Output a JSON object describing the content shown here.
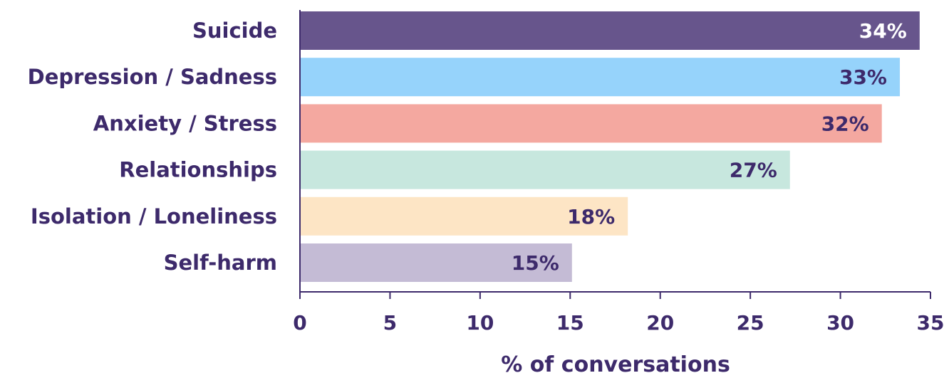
{
  "chart_data": {
    "type": "bar",
    "orientation": "horizontal",
    "categories": [
      "Suicide",
      "Depression / Sadness",
      "Anxiety / Stress",
      "Relationships",
      "Isolation / Loneliness",
      "Self-harm"
    ],
    "values": [
      34.4,
      33.3,
      32.3,
      27.2,
      18.2,
      15.1
    ],
    "value_labels": [
      "34%",
      "33%",
      "32%",
      "27%",
      "18%",
      "15%"
    ],
    "bar_colors": [
      "#67558c",
      "#96d3fb",
      "#f4a8a0",
      "#c7e7de",
      "#fde5c5",
      "#c4bbd5"
    ],
    "label_colors": [
      "#ffffff",
      "#3d2a6b",
      "#3d2a6b",
      "#3d2a6b",
      "#3d2a6b",
      "#3d2a6b"
    ],
    "xlabel": "% of conversations",
    "ylabel": "",
    "title": "",
    "xlim": [
      0,
      35
    ],
    "xticks": [
      "0",
      "5",
      "10",
      "15",
      "20",
      "25",
      "30",
      "35"
    ],
    "grid": false,
    "axis_color": "#3d2a6b"
  }
}
